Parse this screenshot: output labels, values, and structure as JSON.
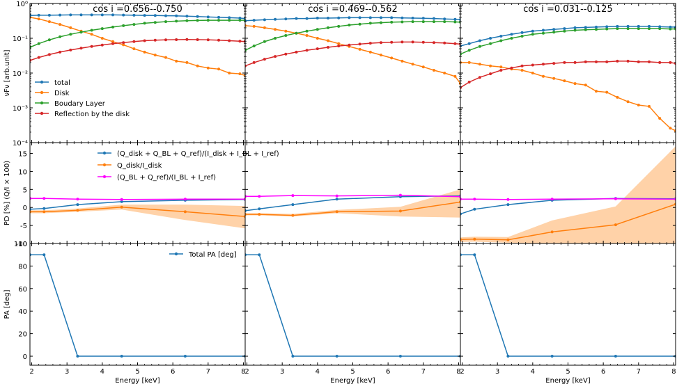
{
  "colors": {
    "total": "#1f77b4",
    "disk": "#ff7f0e",
    "bl": "#2ca02c",
    "ref": "#d62728",
    "magenta": "#ff00ff",
    "band": "#ffd2a8"
  },
  "chart_data": {
    "type": "line",
    "xlabel": "Energy [keV]",
    "xlim": [
      1.95,
      8.05
    ],
    "xticks": [
      2,
      3,
      4,
      5,
      6,
      7,
      8
    ],
    "rows": {
      "flux": {
        "ylabel": "νFν [arb.unit]",
        "scale": "log",
        "ylim": [
          0.0001,
          1
        ],
        "ytick_labels": [
          "10⁻⁴",
          "10⁻³",
          "10⁻²",
          "10⁻¹",
          "10⁰"
        ],
        "legend": [
          "total",
          "Disk",
          "Boudary Layer",
          "Reflection by the disk"
        ]
      },
      "pd": {
        "ylabel": "PD [%] (Q/I × 100)",
        "ylim": [
          -10,
          18
        ],
        "yticks": [
          -10,
          -5,
          0,
          5,
          10,
          15
        ],
        "legend": [
          "(Q_disk + Q_BL + Q_ref)/(I_disk + I_BL + I_ref)",
          "Q_disk/I_disk",
          "(Q_BL + Q_ref)/(I_BL + I_ref)"
        ]
      },
      "pa": {
        "ylabel": "PA [deg]",
        "ylim": [
          -8,
          100
        ],
        "yticks": [
          0,
          20,
          40,
          60,
          80,
          100
        ],
        "legend": [
          "Total PA [deg]"
        ]
      }
    },
    "panels": [
      {
        "title": "cos i =0.656--0.750",
        "flux": {
          "total": {
            "x": [
              1.95,
              2.2,
              2.5,
              2.8,
              3.1,
              3.4,
              3.7,
              4.0,
              4.3,
              4.6,
              4.9,
              5.2,
              5.5,
              5.8,
              6.1,
              6.4,
              6.7,
              7.0,
              7.3,
              7.6,
              7.9,
              8.05
            ],
            "y": [
              0.45,
              0.46,
              0.46,
              0.465,
              0.47,
              0.47,
              0.47,
              0.47,
              0.47,
              0.465,
              0.46,
              0.455,
              0.45,
              0.445,
              0.44,
              0.43,
              0.42,
              0.41,
              0.4,
              0.39,
              0.38,
              0.37
            ]
          },
          "disk": {
            "x": [
              1.95,
              2.2,
              2.5,
              2.8,
              3.1,
              3.4,
              3.7,
              4.0,
              4.3,
              4.6,
              4.9,
              5.2,
              5.5,
              5.8,
              6.1,
              6.4,
              6.7,
              7.0,
              7.3,
              7.6,
              7.9,
              8.05
            ],
            "y": [
              0.4,
              0.36,
              0.3,
              0.25,
              0.2,
              0.16,
              0.13,
              0.1,
              0.08,
              0.065,
              0.05,
              0.04,
              0.033,
              0.028,
              0.022,
              0.02,
              0.016,
              0.014,
              0.013,
              0.01,
              0.0095,
              0.0085
            ]
          },
          "bl": {
            "x": [
              1.95,
              2.2,
              2.5,
              2.8,
              3.1,
              3.4,
              3.7,
              4.0,
              4.3,
              4.6,
              4.9,
              5.2,
              5.5,
              5.8,
              6.1,
              6.4,
              6.7,
              7.0,
              7.3,
              7.6,
              7.9,
              8.05
            ],
            "y": [
              0.055,
              0.07,
              0.09,
              0.11,
              0.13,
              0.15,
              0.17,
              0.19,
              0.21,
              0.23,
              0.25,
              0.27,
              0.285,
              0.3,
              0.31,
              0.32,
              0.325,
              0.33,
              0.33,
              0.33,
              0.33,
              0.33
            ]
          },
          "ref": {
            "x": [
              1.95,
              2.2,
              2.5,
              2.8,
              3.1,
              3.4,
              3.7,
              4.0,
              4.3,
              4.6,
              4.9,
              5.2,
              5.5,
              5.8,
              6.1,
              6.4,
              6.7,
              7.0,
              7.3,
              7.6,
              7.9,
              8.05
            ],
            "y": [
              0.023,
              0.028,
              0.034,
              0.04,
              0.046,
              0.052,
              0.058,
              0.064,
              0.07,
              0.075,
              0.08,
              0.085,
              0.088,
              0.09,
              0.091,
              0.092,
              0.091,
              0.09,
              0.088,
              0.085,
              0.082,
              0.08
            ]
          }
        },
        "pd": {
          "total": {
            "x": [
              1.95,
              2.35,
              3.3,
              4.55,
              6.35,
              8.05
            ],
            "y": [
              -0.5,
              -0.3,
              0.8,
              1.6,
              2.0,
              2.2
            ]
          },
          "disk": {
            "x": [
              1.95,
              2.35,
              3.3,
              4.55,
              6.35,
              8.05
            ],
            "y": [
              -1.2,
              -1.2,
              -0.8,
              0.1,
              -1.2,
              -2.5
            ],
            "band_lo": [
              -1.6,
              -1.6,
              -1.2,
              -0.6,
              -3.5,
              -5.8
            ],
            "band_hi": [
              -0.8,
              -0.8,
              -0.3,
              0.8,
              0.8,
              0.4
            ]
          },
          "mix": {
            "x": [
              1.95,
              2.35,
              3.3,
              4.55,
              6.35,
              8.05
            ],
            "y": [
              2.5,
              2.5,
              2.3,
              2.2,
              2.3,
              2.3
            ]
          }
        },
        "pa": {
          "x": [
            1.95,
            2.35,
            3.3,
            4.55,
            6.35,
            8.05
          ],
          "y": [
            90,
            90,
            0,
            0,
            0,
            0
          ]
        }
      },
      {
        "title": "cos i =0.469--0.562",
        "flux": {
          "total": {
            "x": [
              1.95,
              2.2,
              2.5,
              2.8,
              3.1,
              3.4,
              3.7,
              4.0,
              4.3,
              4.6,
              4.9,
              5.2,
              5.5,
              5.8,
              6.1,
              6.4,
              6.7,
              7.0,
              7.3,
              7.6,
              7.9,
              8.05
            ],
            "y": [
              0.32,
              0.33,
              0.34,
              0.35,
              0.36,
              0.37,
              0.37,
              0.38,
              0.38,
              0.385,
              0.39,
              0.39,
              0.39,
              0.39,
              0.39,
              0.385,
              0.38,
              0.375,
              0.37,
              0.36,
              0.35,
              0.345
            ]
          },
          "disk": {
            "x": [
              1.95,
              2.2,
              2.5,
              2.8,
              3.1,
              3.4,
              3.7,
              4.0,
              4.3,
              4.6,
              4.9,
              5.2,
              5.5,
              5.8,
              6.1,
              6.4,
              6.7,
              7.0,
              7.3,
              7.6,
              7.9,
              8.05
            ],
            "y": [
              0.23,
              0.22,
              0.2,
              0.18,
              0.16,
              0.14,
              0.12,
              0.1,
              0.085,
              0.07,
              0.058,
              0.048,
              0.04,
              0.033,
              0.027,
              0.022,
              0.018,
              0.015,
              0.012,
              0.01,
              0.008,
              0.005
            ]
          },
          "bl": {
            "x": [
              1.95,
              2.2,
              2.5,
              2.8,
              3.1,
              3.4,
              3.7,
              4.0,
              4.3,
              4.6,
              4.9,
              5.2,
              5.5,
              5.8,
              6.1,
              6.4,
              6.7,
              7.0,
              7.3,
              7.6,
              7.9,
              8.05
            ],
            "y": [
              0.045,
              0.06,
              0.08,
              0.1,
              0.12,
              0.14,
              0.16,
              0.18,
              0.2,
              0.22,
              0.24,
              0.255,
              0.27,
              0.28,
              0.29,
              0.295,
              0.3,
              0.3,
              0.3,
              0.3,
              0.295,
              0.29
            ]
          },
          "ref": {
            "x": [
              1.95,
              2.2,
              2.5,
              2.8,
              3.1,
              3.4,
              3.7,
              4.0,
              4.3,
              4.6,
              4.9,
              5.2,
              5.5,
              5.8,
              6.1,
              6.4,
              6.7,
              7.0,
              7.3,
              7.6,
              7.9,
              8.05
            ],
            "y": [
              0.016,
              0.02,
              0.025,
              0.03,
              0.035,
              0.04,
              0.045,
              0.05,
              0.055,
              0.06,
              0.064,
              0.068,
              0.072,
              0.075,
              0.077,
              0.078,
              0.078,
              0.077,
              0.075,
              0.073,
              0.07,
              0.068
            ]
          }
        },
        "pd": {
          "total": {
            "x": [
              1.95,
              2.35,
              3.3,
              4.55,
              6.35,
              8.05
            ],
            "y": [
              -0.9,
              -0.4,
              0.8,
              2.3,
              3.0,
              3.2
            ]
          },
          "disk": {
            "x": [
              1.95,
              2.35,
              3.3,
              4.55,
              6.35,
              8.05
            ],
            "y": [
              -1.9,
              -1.9,
              -2.2,
              -1.2,
              -1.0,
              1.5
            ],
            "band_lo": [
              -2.2,
              -2.2,
              -2.5,
              -1.6,
              -2.5,
              -2.8
            ],
            "band_hi": [
              -1.6,
              -1.6,
              -1.8,
              -0.7,
              0.2,
              5.0
            ]
          },
          "mix": {
            "x": [
              1.95,
              2.35,
              3.3,
              4.55,
              6.35,
              8.05
            ],
            "y": [
              3.1,
              3.1,
              3.3,
              3.2,
              3.4,
              3.0
            ]
          }
        },
        "pa": {
          "x": [
            1.95,
            2.35,
            3.3,
            4.55,
            6.35,
            8.05
          ],
          "y": [
            90,
            90,
            0,
            0,
            0,
            0
          ]
        }
      },
      {
        "title": "cos i =0.031--0.125",
        "flux": {
          "total": {
            "x": [
              1.95,
              2.2,
              2.5,
              2.8,
              3.1,
              3.4,
              3.7,
              4.0,
              4.3,
              4.6,
              4.9,
              5.2,
              5.5,
              5.8,
              6.1,
              6.4,
              6.7,
              7.0,
              7.3,
              7.6,
              7.9,
              8.05
            ],
            "y": [
              0.06,
              0.07,
              0.085,
              0.1,
              0.115,
              0.13,
              0.145,
              0.16,
              0.17,
              0.18,
              0.19,
              0.2,
              0.205,
              0.21,
              0.215,
              0.22,
              0.22,
              0.22,
              0.22,
              0.215,
              0.21,
              0.21
            ]
          },
          "disk": {
            "x": [
              1.95,
              2.2,
              2.5,
              2.8,
              3.1,
              3.4,
              3.7,
              4.0,
              4.3,
              4.6,
              4.9,
              5.2,
              5.5,
              5.8,
              6.1,
              6.4,
              6.7,
              7.0,
              7.3,
              7.6,
              7.9,
              8.05
            ],
            "y": [
              0.02,
              0.02,
              0.018,
              0.016,
              0.015,
              0.013,
              0.012,
              0.01,
              0.008,
              0.007,
              0.006,
              0.005,
              0.0045,
              0.003,
              0.0028,
              0.002,
              0.0015,
              0.0012,
              0.0011,
              0.0005,
              0.00026,
              0.00022
            ]
          },
          "bl": {
            "x": [
              1.95,
              2.2,
              2.5,
              2.8,
              3.1,
              3.4,
              3.7,
              4.0,
              4.3,
              4.6,
              4.9,
              5.2,
              5.5,
              5.8,
              6.1,
              6.4,
              6.7,
              7.0,
              7.3,
              7.6,
              7.9,
              8.05
            ],
            "y": [
              0.035,
              0.045,
              0.058,
              0.07,
              0.085,
              0.1,
              0.115,
              0.13,
              0.14,
              0.15,
              0.16,
              0.17,
              0.175,
              0.18,
              0.185,
              0.19,
              0.19,
              0.19,
              0.19,
              0.19,
              0.185,
              0.185
            ]
          },
          "ref": {
            "x": [
              1.95,
              2.2,
              2.5,
              2.8,
              3.1,
              3.4,
              3.7,
              4.0,
              4.3,
              4.6,
              4.9,
              5.2,
              5.5,
              5.8,
              6.1,
              6.4,
              6.7,
              7.0,
              7.3,
              7.6,
              7.9,
              8.05
            ],
            "y": [
              0.0038,
              0.0055,
              0.0075,
              0.0095,
              0.012,
              0.014,
              0.016,
              0.017,
              0.018,
              0.019,
              0.02,
              0.02,
              0.021,
              0.021,
              0.021,
              0.022,
              0.022,
              0.021,
              0.021,
              0.02,
              0.02,
              0.019
            ]
          }
        },
        "pd": {
          "total": {
            "x": [
              1.95,
              2.35,
              3.3,
              4.55,
              6.35,
              8.05
            ],
            "y": [
              -1.8,
              -0.5,
              0.8,
              2.0,
              2.5,
              2.4
            ]
          },
          "disk": {
            "x": [
              1.95,
              2.35,
              3.3,
              4.55,
              6.35,
              8.05
            ],
            "y": [
              -8.9,
              -8.8,
              -9.0,
              -6.8,
              -4.8,
              0.9
            ],
            "band_lo": [
              -9.6,
              -9.5,
              -9.8,
              -10,
              -10,
              -10
            ],
            "band_hi": [
              -8.3,
              -8.1,
              -8.2,
              -3.6,
              0.3,
              17.0
            ]
          },
          "mix": {
            "x": [
              1.95,
              2.35,
              3.3,
              4.55,
              6.35,
              8.05
            ],
            "y": [
              2.3,
              2.3,
              2.2,
              2.3,
              2.4,
              2.3
            ]
          }
        },
        "pa": {
          "x": [
            1.95,
            2.35,
            3.3,
            4.55,
            6.35,
            8.05
          ],
          "y": [
            90,
            90,
            0,
            0,
            0,
            0
          ]
        }
      }
    ]
  }
}
